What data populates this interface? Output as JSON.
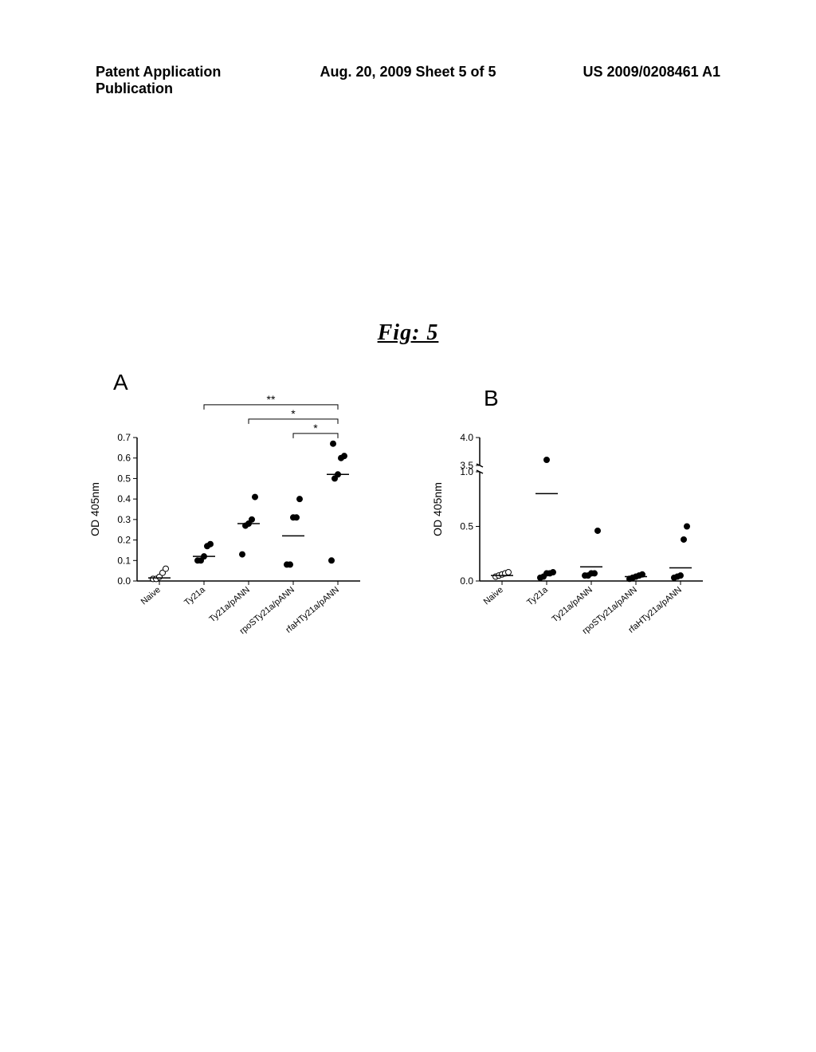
{
  "header": {
    "left": "Patent Application Publication",
    "center": "Aug. 20, 2009  Sheet 5 of 5",
    "right": "US 2009/0208461 A1"
  },
  "figure_label": "Fig: 5",
  "chartA": {
    "type": "scatter",
    "panel_label": "A",
    "ylabel": "OD 405nm",
    "ylim": [
      0.0,
      0.7
    ],
    "ytick_step": 0.1,
    "yticks": [
      "0.0",
      "0.1",
      "0.2",
      "0.3",
      "0.4",
      "0.5",
      "0.6",
      "0.7"
    ],
    "categories": [
      "Naive",
      "Ty21a",
      "Ty21a/pANN",
      "rpoSTy21a/pANN",
      "rfaHTy21a/pANN"
    ],
    "background_color": "#ffffff",
    "axis_color": "#000000",
    "marker_fill": "#000000",
    "marker_open": "#ffffff",
    "marker_stroke": "#000000",
    "marker_size": 3.5,
    "median_line_color": "#000000",
    "significance": [
      {
        "label": "**",
        "from": 1,
        "to": 4,
        "y": 0.86
      },
      {
        "label": "*",
        "from": 2,
        "to": 4,
        "y": 0.79
      },
      {
        "label": "*",
        "from": 3,
        "to": 4,
        "y": 0.72
      }
    ],
    "series": [
      {
        "cat": 0,
        "points": [
          0.01,
          0.01,
          0.02,
          0.04,
          0.06
        ],
        "open": true,
        "median": 0.015
      },
      {
        "cat": 1,
        "points": [
          0.1,
          0.1,
          0.12,
          0.17,
          0.18
        ],
        "open": false,
        "median": 0.12
      },
      {
        "cat": 2,
        "points": [
          0.13,
          0.27,
          0.28,
          0.3,
          0.41
        ],
        "open": false,
        "median": 0.28
      },
      {
        "cat": 3,
        "points": [
          0.08,
          0.08,
          0.31,
          0.31,
          0.4
        ],
        "open": false,
        "median": 0.22
      },
      {
        "cat": 4,
        "points": [
          0.1,
          0.5,
          0.52,
          0.6,
          0.61,
          0.67
        ],
        "open": false,
        "median": 0.52
      }
    ]
  },
  "chartB": {
    "type": "scatter",
    "panel_label": "B",
    "ylabel": "OD 405nm",
    "yticks_lower": [
      "0.0",
      "0.5"
    ],
    "yticks_upper": [
      "1.0",
      "3.5",
      "4.0"
    ],
    "categories": [
      "Naive",
      "Ty21a",
      "Ty21a/pANN",
      "rpoSTy21a/pANN",
      "rfaHTy21a/pANN"
    ],
    "background_color": "#ffffff",
    "axis_color": "#000000",
    "marker_fill": "#000000",
    "marker_open": "#ffffff",
    "marker_stroke": "#000000",
    "marker_size": 3.5,
    "median_line_color": "#000000",
    "series": [
      {
        "cat": 0,
        "points_lower": [
          0.04,
          0.05,
          0.06,
          0.07,
          0.08
        ],
        "points_upper": [],
        "open": true,
        "median_lower": 0.05
      },
      {
        "cat": 1,
        "points_lower": [
          0.03,
          0.04,
          0.07,
          0.07,
          0.08
        ],
        "points_upper": [
          3.6
        ],
        "open": false,
        "median_lower": 0.8
      },
      {
        "cat": 2,
        "points_lower": [
          0.05,
          0.05,
          0.07,
          0.07,
          0.46
        ],
        "points_upper": [],
        "open": false,
        "median_lower": 0.13
      },
      {
        "cat": 3,
        "points_lower": [
          0.02,
          0.03,
          0.04,
          0.05,
          0.06
        ],
        "points_upper": [],
        "open": false,
        "median_lower": 0.04
      },
      {
        "cat": 4,
        "points_lower": [
          0.03,
          0.04,
          0.05,
          0.38,
          0.5
        ],
        "points_upper": [],
        "open": false,
        "median_lower": 0.12
      }
    ]
  }
}
